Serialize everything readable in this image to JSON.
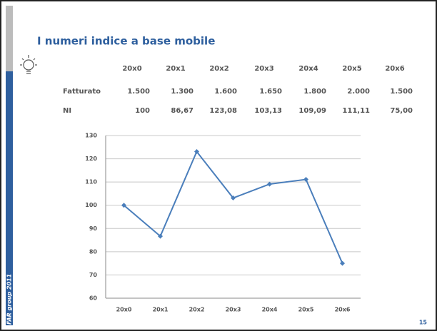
{
  "header": {
    "title": "I numeri indice a base mobile"
  },
  "table": {
    "header": [
      "20x0",
      "20x1",
      "20x2",
      "20x3",
      "20x4",
      "20x5",
      "20x6"
    ],
    "rows": [
      [
        "Fatturato",
        "1.500",
        "1.300",
        "1.600",
        "1.650",
        "1.800",
        "2.000",
        "1.500"
      ],
      [
        "NI",
        "100",
        "86,67",
        "123,08",
        "103,13",
        "109,09",
        "111,11",
        "75,00"
      ]
    ]
  },
  "chart_data": {
    "type": "line",
    "categories": [
      "20x0",
      "20x1",
      "20x2",
      "20x3",
      "20x4",
      "20x5",
      "20x6"
    ],
    "values": [
      100,
      86.67,
      123.08,
      103.13,
      109.09,
      111.11,
      75.0
    ],
    "color": "#4a7ebb",
    "ylim": [
      60,
      130
    ],
    "yticks": [
      60,
      70,
      80,
      90,
      100,
      110,
      120,
      130
    ],
    "grid": true
  },
  "footer": {
    "brand": "FAR group 2011",
    "page": "15"
  }
}
